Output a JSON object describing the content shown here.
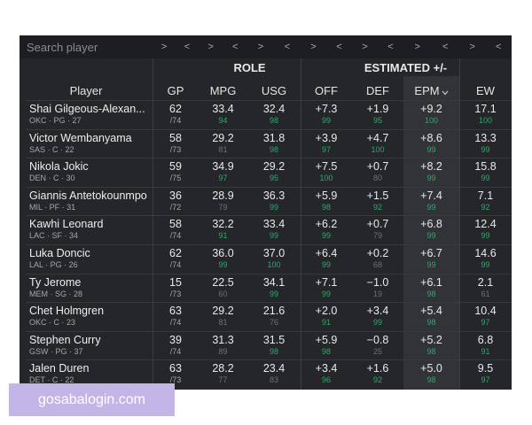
{
  "search": {
    "placeholder": "Search player"
  },
  "arrow_glyphs": {
    "right": ">",
    "left": "<"
  },
  "groups": {
    "role": "ROLE",
    "estimated": "ESTIMATED +/-"
  },
  "columns": {
    "player": "Player",
    "gp": "GP",
    "mpg": "MPG",
    "usg": "USG",
    "off": "OFF",
    "def": "DEF",
    "epm": "EPM",
    "ew": "EW"
  },
  "sort_icon": "chevron-down-icon",
  "colors": {
    "panel": "#25262a",
    "percentile_high": "#2fa86a",
    "percentile_mid": "#6e7075"
  },
  "players": [
    {
      "name": "Shai Gilgeous-Alexan...",
      "meta": "OKC · PG · 27",
      "gp": "62",
      "gp_total": "/74",
      "mpg": "33.4",
      "mpg_pct": "94",
      "usg": "32.4",
      "usg_pct": "98",
      "off": "+7.3",
      "off_pct": "99",
      "def": "+1.9",
      "def_pct": "95",
      "epm": "+9.2",
      "epm_pct": "100",
      "ew": "17.1",
      "ew_pct": "100"
    },
    {
      "name": "Victor Wembanyama",
      "meta": "SAS · C · 22",
      "gp": "58",
      "gp_total": "/73",
      "mpg": "29.2",
      "mpg_pct": "81",
      "usg": "31.8",
      "usg_pct": "98",
      "off": "+3.9",
      "off_pct": "97",
      "def": "+4.7",
      "def_pct": "100",
      "epm": "+8.6",
      "epm_pct": "99",
      "ew": "13.3",
      "ew_pct": "99"
    },
    {
      "name": "Nikola Jokic",
      "meta": "DEN · C · 30",
      "gp": "59",
      "gp_total": "/75",
      "mpg": "34.9",
      "mpg_pct": "97",
      "usg": "29.2",
      "usg_pct": "95",
      "off": "+7.5",
      "off_pct": "100",
      "def": "+0.7",
      "def_pct": "80",
      "epm": "+8.2",
      "epm_pct": "99",
      "ew": "15.8",
      "ew_pct": "99"
    },
    {
      "name": "Giannis Antetokounmpo",
      "meta": "MIL · PF · 31",
      "gp": "36",
      "gp_total": "/72",
      "mpg": "28.9",
      "mpg_pct": "79",
      "usg": "36.3",
      "usg_pct": "99",
      "off": "+5.9",
      "off_pct": "98",
      "def": "+1.5",
      "def_pct": "92",
      "epm": "+7.4",
      "epm_pct": "99",
      "ew": "7.1",
      "ew_pct": "92"
    },
    {
      "name": "Kawhi Leonard",
      "meta": "LAC · SF · 34",
      "gp": "58",
      "gp_total": "/74",
      "mpg": "32.2",
      "mpg_pct": "91",
      "usg": "33.4",
      "usg_pct": "99",
      "off": "+6.2",
      "off_pct": "99",
      "def": "+0.7",
      "def_pct": "79",
      "epm": "+6.8",
      "epm_pct": "99",
      "ew": "12.4",
      "ew_pct": "99"
    },
    {
      "name": "Luka Doncic",
      "meta": "LAL · PG · 26",
      "gp": "62",
      "gp_total": "/74",
      "mpg": "36.0",
      "mpg_pct": "99",
      "usg": "37.0",
      "usg_pct": "100",
      "off": "+6.4",
      "off_pct": "99",
      "def": "+0.2",
      "def_pct": "68",
      "epm": "+6.7",
      "epm_pct": "99",
      "ew": "14.6",
      "ew_pct": "99"
    },
    {
      "name": "Ty Jerome",
      "meta": "MEM · SG · 28",
      "gp": "15",
      "gp_total": "/73",
      "mpg": "22.5",
      "mpg_pct": "60",
      "usg": "34.1",
      "usg_pct": "99",
      "off": "+7.1",
      "off_pct": "99",
      "def": "−1.0",
      "def_pct": "19",
      "epm": "+6.1",
      "epm_pct": "98",
      "ew": "2.1",
      "ew_pct": "61"
    },
    {
      "name": "Chet Holmgren",
      "meta": "OKC · C · 23",
      "gp": "63",
      "gp_total": "/74",
      "mpg": "29.2",
      "mpg_pct": "81",
      "usg": "21.6",
      "usg_pct": "76",
      "off": "+2.0",
      "off_pct": "91",
      "def": "+3.4",
      "def_pct": "99",
      "epm": "+5.4",
      "epm_pct": "98",
      "ew": "10.4",
      "ew_pct": "97"
    },
    {
      "name": "Stephen Curry",
      "meta": "GSW · PG · 37",
      "gp": "39",
      "gp_total": "/74",
      "mpg": "31.3",
      "mpg_pct": "89",
      "usg": "31.5",
      "usg_pct": "98",
      "off": "+5.9",
      "off_pct": "98",
      "def": "−0.8",
      "def_pct": "25",
      "epm": "+5.2",
      "epm_pct": "98",
      "ew": "6.8",
      "ew_pct": "91"
    },
    {
      "name": "Jalen Duren",
      "meta": "DET · C · 22",
      "gp": "63",
      "gp_total": "/73",
      "mpg": "28.2",
      "mpg_pct": "77",
      "usg": "23.4",
      "usg_pct": "83",
      "off": "+3.4",
      "off_pct": "96",
      "def": "+1.6",
      "def_pct": "92",
      "epm": "+5.0",
      "epm_pct": "98",
      "ew": "9.5",
      "ew_pct": "97"
    }
  ],
  "watermark": "gosabalogin.com"
}
